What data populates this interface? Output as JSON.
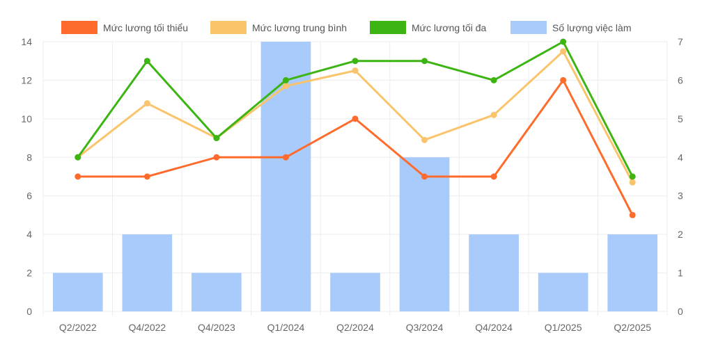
{
  "chart_data": {
    "type": "bar+line",
    "categories": [
      "Q2/2022",
      "Q4/2022",
      "Q4/2023",
      "Q1/2024",
      "Q2/2024",
      "Q3/2024",
      "Q4/2024",
      "Q1/2025",
      "Q2/2025"
    ],
    "series": [
      {
        "name": "Mức lương tối thiểu",
        "type": "line",
        "axis": "left",
        "color": "#ff6b2c",
        "values": [
          7,
          7,
          8,
          8,
          10,
          7,
          7,
          12,
          5
        ]
      },
      {
        "name": "Mức lương trung bình",
        "type": "line",
        "axis": "left",
        "color": "#f9c46b",
        "values": [
          8,
          10.8,
          9,
          11.7,
          12.5,
          8.9,
          10.2,
          13.5,
          6.7
        ]
      },
      {
        "name": "Mức lương tối đa",
        "type": "line",
        "axis": "left",
        "color": "#3cb512",
        "values": [
          8,
          13,
          9,
          12,
          13,
          13,
          12,
          14,
          7
        ]
      },
      {
        "name": "Số lượng việc làm",
        "type": "bar",
        "axis": "right",
        "color": "#a8cbfc",
        "values": [
          1,
          2,
          1,
          7,
          1,
          4,
          2,
          1,
          2
        ]
      }
    ],
    "y_left": {
      "min": 0,
      "max": 14,
      "ticks": [
        "0",
        "2",
        "4",
        "6",
        "8",
        "10",
        "12",
        "14"
      ]
    },
    "y_right": {
      "min": 0,
      "max": 7,
      "ticks": [
        "0",
        "1",
        "2",
        "3",
        "4",
        "5",
        "6",
        "7"
      ]
    },
    "legend_position": "top",
    "grid": true
  }
}
